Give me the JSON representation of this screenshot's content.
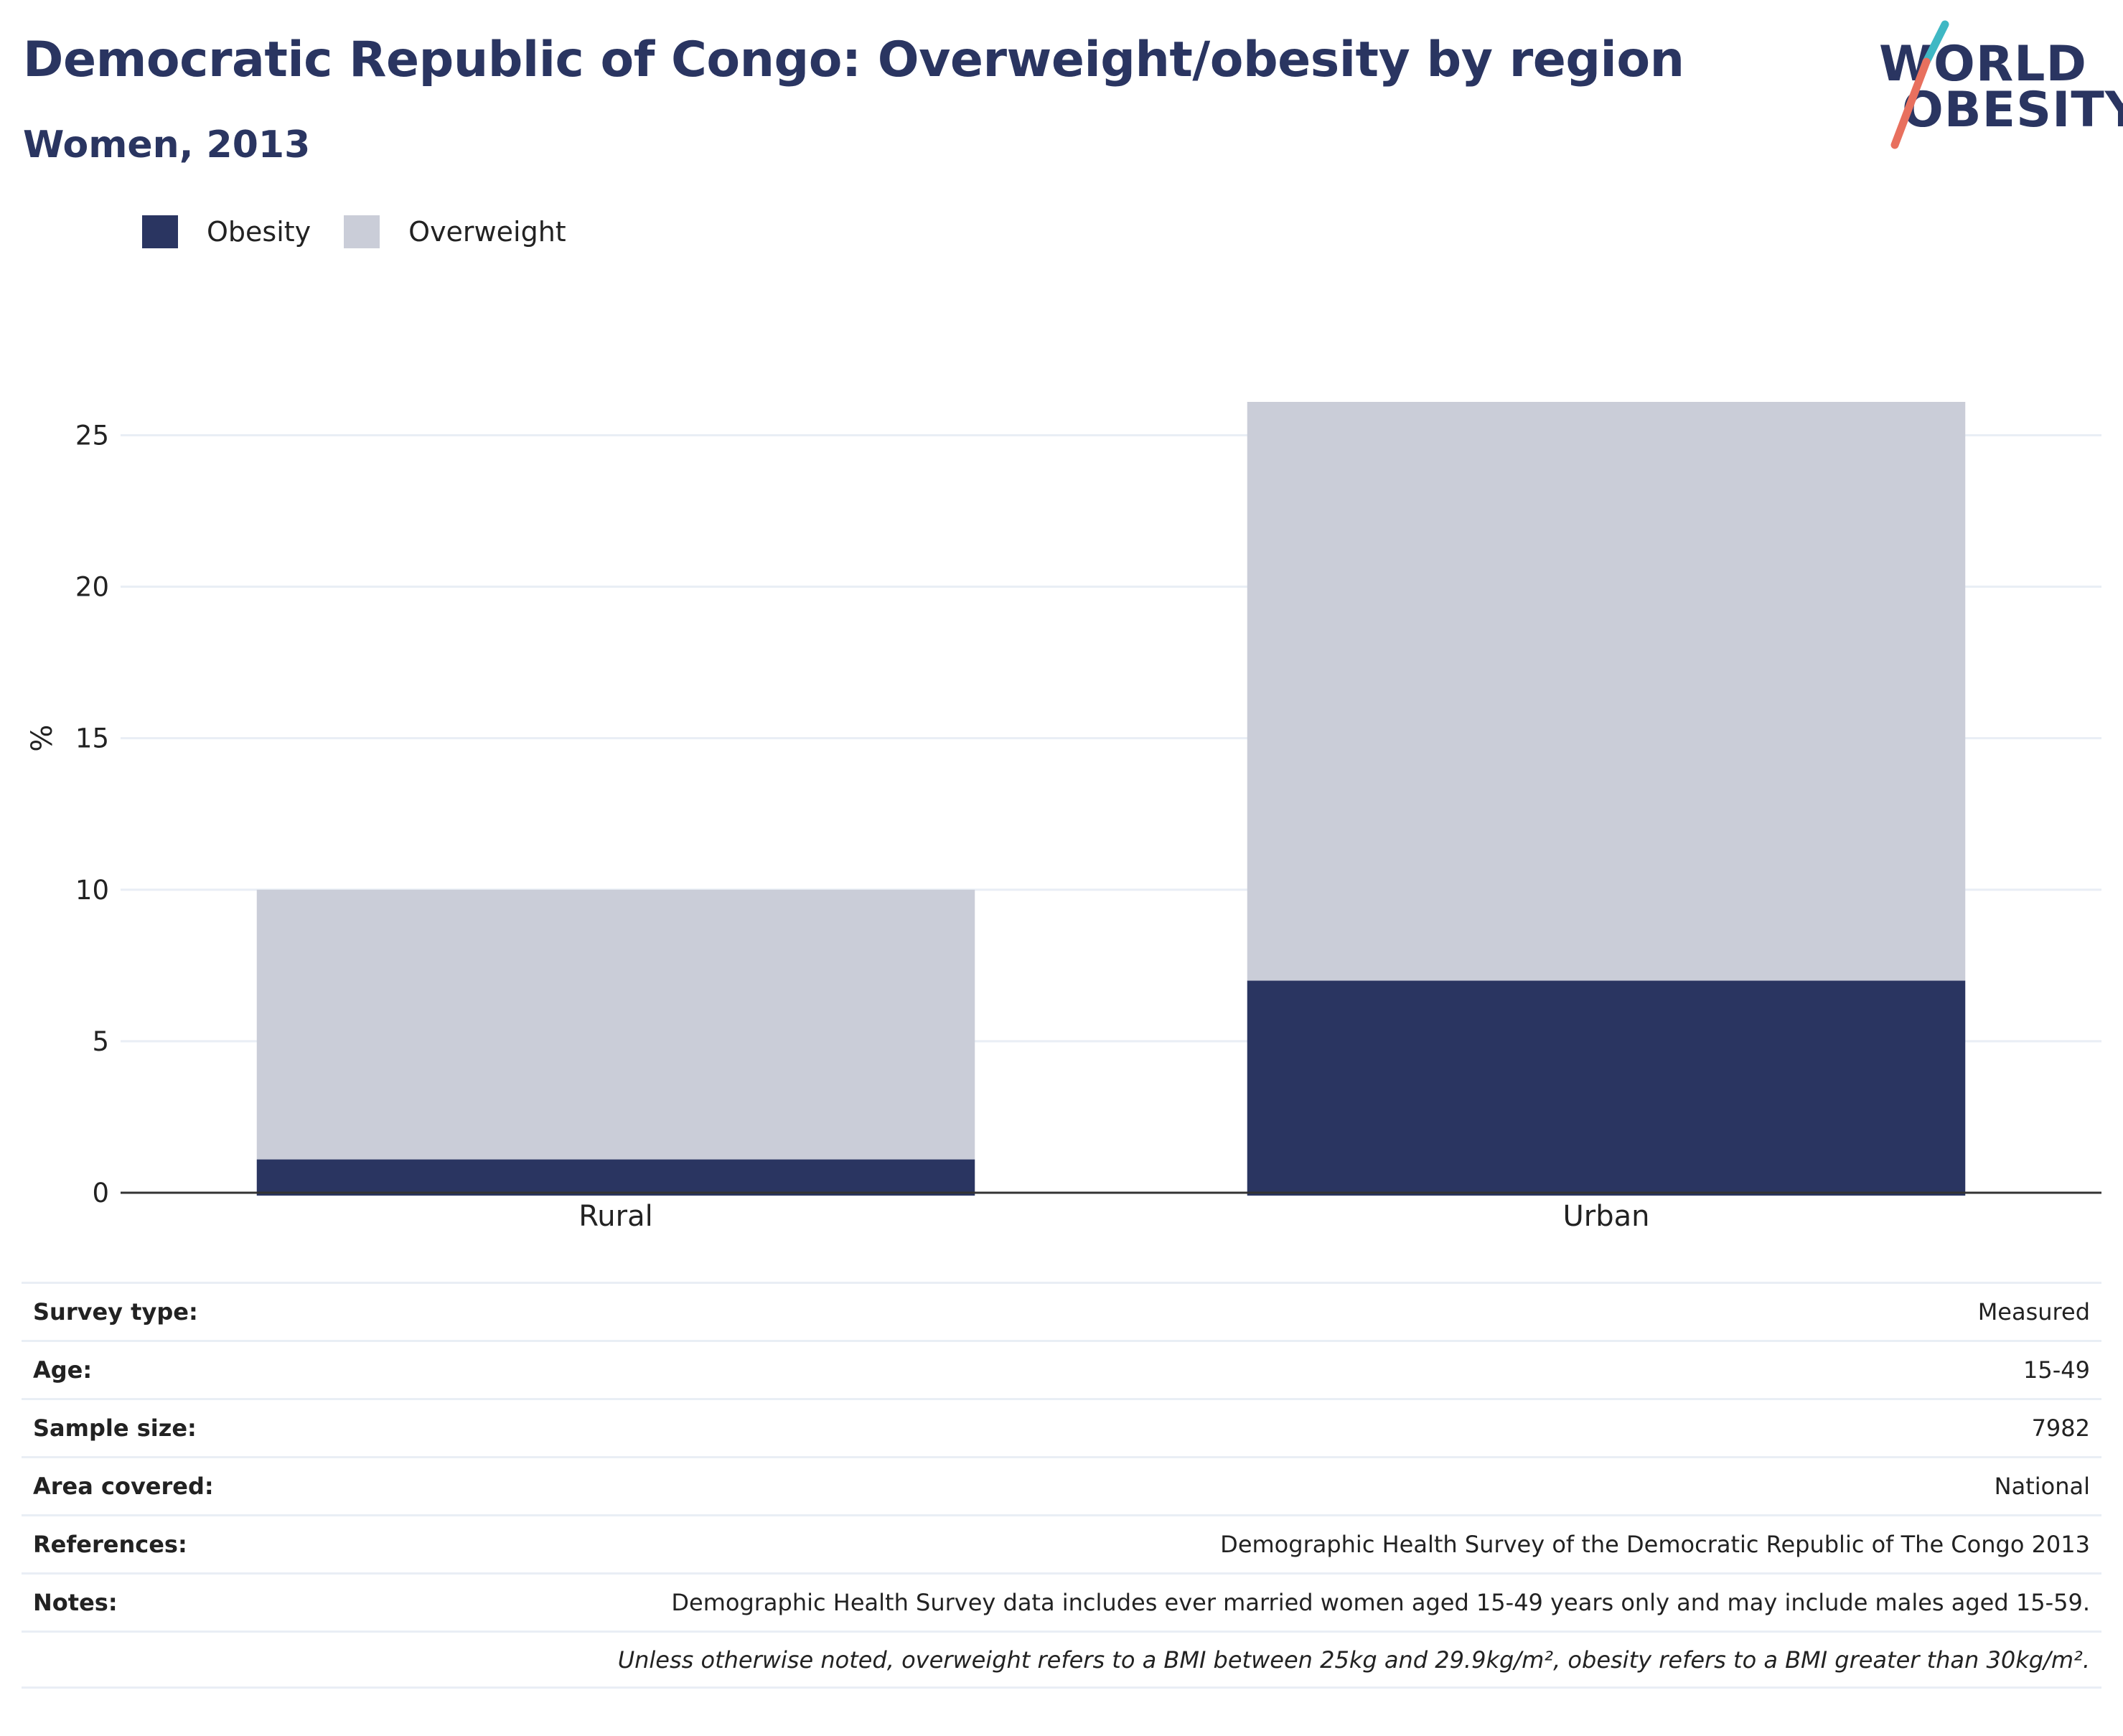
{
  "header": {
    "title": "Democratic Republic of Congo: Overweight/obesity by region",
    "subtitle": "Women, 2013"
  },
  "logo": {
    "line1": "WORLD",
    "line2": "OBESITY",
    "slash_colors": [
      "#3fb8c4",
      "#e8705e"
    ]
  },
  "colors": {
    "obesity": "#2a3561",
    "overweight": "#cacdd8",
    "grid": "#e9eef5",
    "axis": "#333333"
  },
  "legend": [
    {
      "label": "Obesity",
      "color": "#2a3561"
    },
    {
      "label": "Overweight",
      "color": "#cacdd8"
    }
  ],
  "chart_data": {
    "type": "bar",
    "stacked": true,
    "categories": [
      "Rural",
      "Urban"
    ],
    "series": [
      {
        "name": "Obesity",
        "values": [
          1.1,
          7.0
        ]
      },
      {
        "name": "Overweight",
        "values": [
          8.9,
          19.1
        ]
      }
    ],
    "ylabel": "%",
    "ylim": [
      0,
      26.1
    ],
    "yticks": [
      0,
      5,
      10,
      15,
      20,
      25
    ],
    "grid": true,
    "legend_position": "top-left"
  },
  "info": {
    "rows": [
      {
        "label": "Survey type:",
        "value": "Measured"
      },
      {
        "label": "Age:",
        "value": "15-49"
      },
      {
        "label": "Sample size:",
        "value": "7982"
      },
      {
        "label": "Area covered:",
        "value": "National"
      },
      {
        "label": "References:",
        "value": "Demographic Health Survey of the Democratic Republic of The Congo 2013"
      },
      {
        "label": "Notes:",
        "value": "Demographic Health Survey data includes ever married women aged 15-49 years only and may include males aged 15-59."
      }
    ],
    "footnote": "Unless otherwise noted, overweight refers to a BMI between 25kg and 29.9kg/m², obesity refers to a BMI greater than 30kg/m²."
  }
}
